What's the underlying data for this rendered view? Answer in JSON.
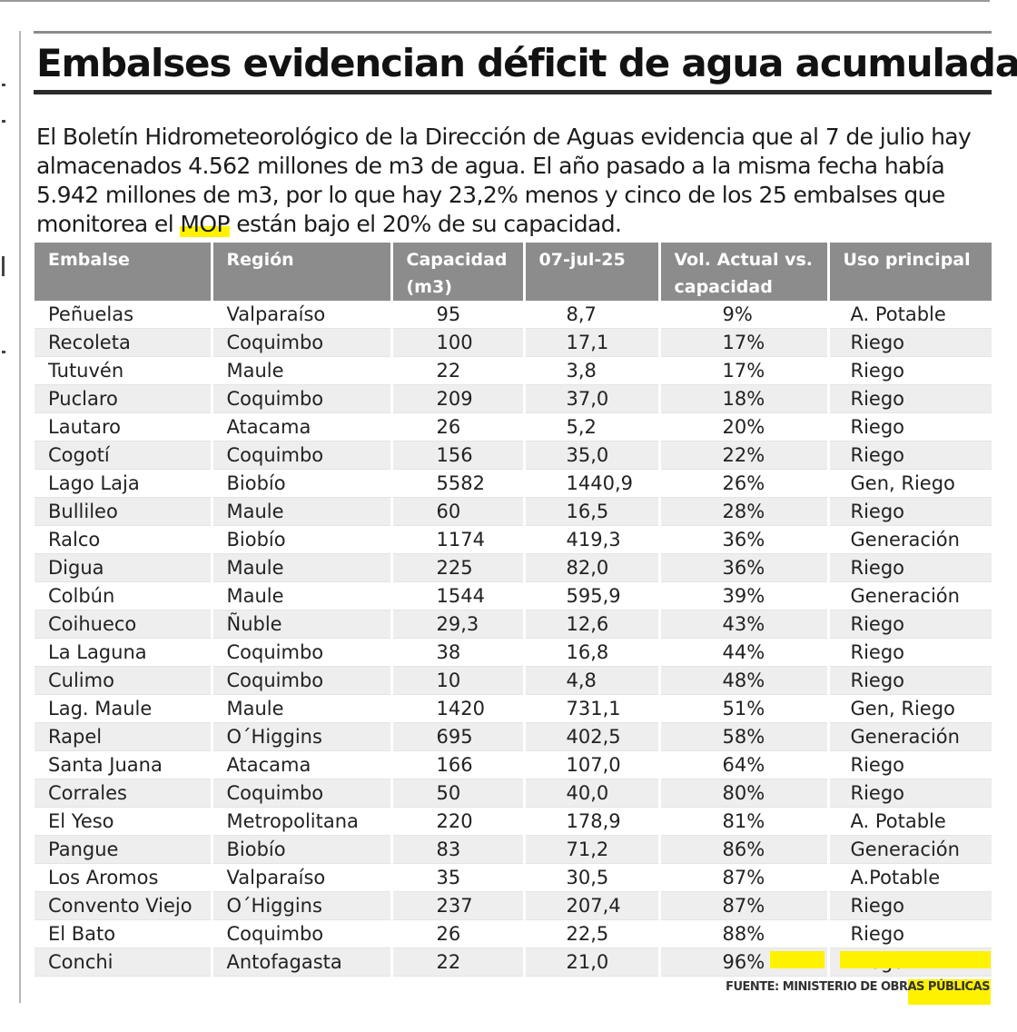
{
  "article": {
    "headline": "Embalses evidencian déficit de agua acumulada",
    "lede_before": "El Boletín Hidrometeorológico de la Dirección de Aguas evidencia que al 7 de julio hay almacenados 4.562 millones de m3 de agua. El año pasado a la misma fecha había 5.942 millones de m3, por lo que hay 23,2% menos y cinco de los 25 embalses que monitorea el ",
    "lede_highlight": "MOP",
    "lede_after": " están bajo el 20% de su capacidad.",
    "source": "FUENTE: MINISTERIO DE OBRAS PÚBLICAS"
  },
  "table": {
    "columns": [
      "Embalse",
      "Región",
      "Capacidad (m3)",
      "07-jul-25",
      "Vol. Actual vs. capacidad",
      "Uso principal"
    ],
    "rows": [
      [
        "Peñuelas",
        "Valparaíso",
        "95",
        "8,7",
        "9%",
        "A. Potable"
      ],
      [
        "Recoleta",
        "Coquimbo",
        "100",
        "17,1",
        "17%",
        "Riego"
      ],
      [
        "Tutuvén",
        "Maule",
        "22",
        "3,8",
        "17%",
        "Riego"
      ],
      [
        "Puclaro",
        "Coquimbo",
        "209",
        "37,0",
        "18%",
        "Riego"
      ],
      [
        "Lautaro",
        "Atacama",
        "26",
        "5,2",
        "20%",
        "Riego"
      ],
      [
        "Cogotí",
        "Coquimbo",
        "156",
        "35,0",
        "22%",
        "Riego"
      ],
      [
        "Lago Laja",
        "Biobío",
        "5582",
        "1440,9",
        "26%",
        "Gen, Riego"
      ],
      [
        "Bullileo",
        "Maule",
        "60",
        "16,5",
        "28%",
        "Riego"
      ],
      [
        "Ralco",
        "Biobío",
        "1174",
        "419,3",
        "36%",
        "Generación"
      ],
      [
        "Digua",
        "Maule",
        "225",
        "82,0",
        "36%",
        "Riego"
      ],
      [
        "Colbún",
        "Maule",
        "1544",
        "595,9",
        "39%",
        "Generación"
      ],
      [
        "Coihueco",
        "Ñuble",
        "29,3",
        "12,6",
        "43%",
        "Riego"
      ],
      [
        "La Laguna",
        "Coquimbo",
        "38",
        "16,8",
        "44%",
        "Riego"
      ],
      [
        "Culimo",
        "Coquimbo",
        "10",
        "4,8",
        "48%",
        "Riego"
      ],
      [
        "Lag. Maule",
        "Maule",
        "1420",
        "731,1",
        "51%",
        "Gen, Riego"
      ],
      [
        "Rapel",
        "O´Higgins",
        "695",
        "402,5",
        "58%",
        "Generación"
      ],
      [
        "Santa Juana",
        "Atacama",
        "166",
        "107,0",
        "64%",
        "Riego"
      ],
      [
        "Corrales",
        "Coquimbo",
        "50",
        "40,0",
        "80%",
        "Riego"
      ],
      [
        "El Yeso",
        "Metropolitana",
        "220",
        "178,9",
        "81%",
        "A. Potable"
      ],
      [
        "Pangue",
        "Biobío",
        "83",
        "71,2",
        "86%",
        "Generación"
      ],
      [
        "Los Aromos",
        "Valparaíso",
        "35",
        "30,5",
        "87%",
        "A.Potable"
      ],
      [
        "Convento Viejo",
        "O´Higgins",
        "237",
        "207,4",
        "87%",
        "Riego"
      ],
      [
        "El Bato",
        "Coquimbo",
        "26",
        "22,5",
        "88%",
        "Riego"
      ],
      [
        "Conchi",
        "Antofagasta",
        "22",
        "21,0",
        "96%",
        "Riego"
      ]
    ]
  },
  "colors": {
    "header_bg": "#8c8c8c",
    "stripe_bg": "#eeeeee",
    "highlight": "#fff200"
  }
}
